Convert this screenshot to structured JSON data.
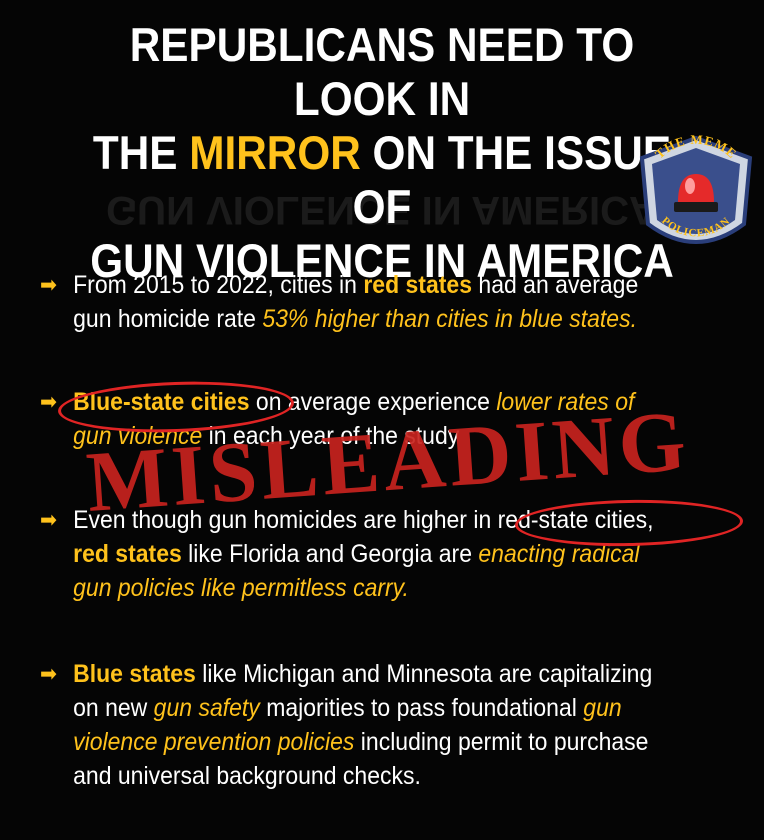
{
  "headline": {
    "line1": "REPUBLICANS NEED TO LOOK IN",
    "line2_pre": "THE ",
    "line2_accent": "MIRROR",
    "line2_post": " ON THE ISSUE OF",
    "line3": "GUN VIOLENCE IN AMERICA"
  },
  "badge": {
    "top_text": "THE MEME",
    "bottom_text": "POLICEMAN"
  },
  "stamp": "MISLEADING",
  "bullets": [
    {
      "t1": "From 2015 to 2022, cities in ",
      "t2": "red states",
      "t3": " had an average gun homicide rate ",
      "t4": "53% higher than cities in blue states."
    },
    {
      "t1": "Blue-state cities",
      "t2": " on average experience ",
      "t3": "lower rates of gun violence",
      "t4": " in each year of the study"
    },
    {
      "t1": "Even though gun homicides are higher in ",
      "t2": "red-state cities,",
      "t3": " ",
      "t4": "red states",
      "t5": " like Florida and Georgia are ",
      "t6": "enacting radical gun policies like permitless carry."
    },
    {
      "t1": "Blue states",
      "t2": " like Michigan and Minnesota are capitalizing on new ",
      "t3": "gun safety",
      "t4": " majorities to pass foundational ",
      "t5": "gun violence prevention policies",
      "t6": " including permit to purchase and universal background checks."
    }
  ],
  "colors": {
    "accent": "#ffc21c",
    "stamp": "#c8231e",
    "background": "#050505"
  },
  "icons": {
    "bullet": "right-arrow-icon",
    "badge": "siren-icon"
  }
}
